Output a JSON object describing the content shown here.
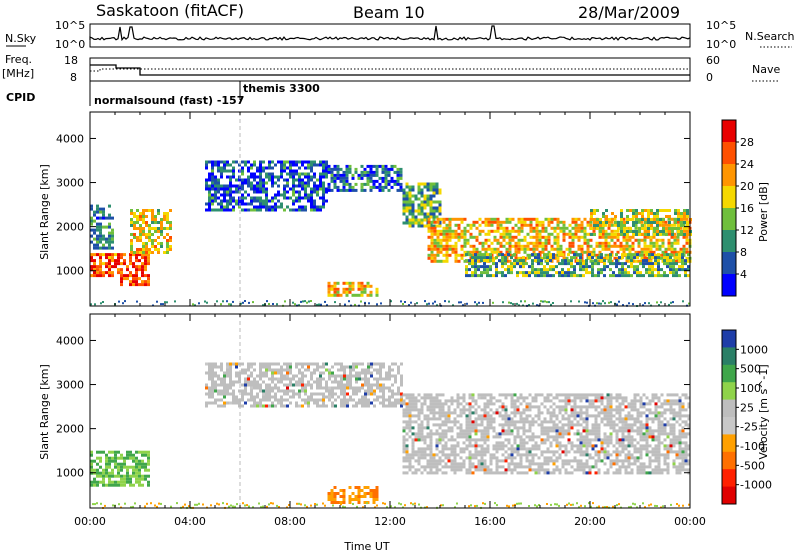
{
  "header": {
    "station": "Saskatoon (fitACF)",
    "beam": "Beam 10",
    "date": "28/Mar/2009"
  },
  "noise_panel": {
    "left_label": "N.Sky",
    "right_label": "N.Search",
    "left_ticks": [
      "10^5",
      "10^0"
    ],
    "right_ticks": [
      "10^5",
      "10^0"
    ]
  },
  "freq_panel": {
    "left_label_1": "Freq.",
    "left_label_2": "[MHz]",
    "right_label": "Nave",
    "left_ticks": [
      "18",
      "8"
    ],
    "right_ticks": [
      "60",
      "0"
    ]
  },
  "cpid": {
    "label": "CPID",
    "entries": [
      {
        "text": "normalsound (fast) -157",
        "time": 0.0
      },
      {
        "text": "themis 3300",
        "time": 6.0
      }
    ]
  },
  "colors": {
    "power_scale": [
      "#0000ff",
      "#1e50a8",
      "#2e8f6f",
      "#6fbf3c",
      "#f5d800",
      "#ff9500",
      "#ff5000",
      "#e80000"
    ],
    "velocity_scale": [
      "#1e3da8",
      "#2a7f66",
      "#3fa64a",
      "#8fd34a",
      "#bebebe",
      "#c8c8c8",
      "#ffa000",
      "#ff7000",
      "#ff2000",
      "#e00000"
    ]
  },
  "chart_data": [
    {
      "type": "heatmap",
      "panel": "power",
      "ylabel": "Slant Range [km]",
      "xlabel": "",
      "xlim": [
        0,
        24
      ],
      "ylim": [
        200,
        4600
      ],
      "yticks": [
        "1000",
        "2000",
        "3000",
        "4000"
      ],
      "colorbar": {
        "label": "Power [dB]",
        "ticks": [
          "4",
          "8",
          "12",
          "16",
          "20",
          "24",
          "28"
        ],
        "range": [
          0,
          32
        ]
      },
      "regions": [
        {
          "t0": 0.0,
          "t1": 1.1,
          "r0": 900,
          "r1": 1400,
          "value": 26
        },
        {
          "t0": 0.0,
          "t1": 0.9,
          "r0": 1500,
          "r1": 2500,
          "value": 8
        },
        {
          "t0": 1.2,
          "t1": 2.3,
          "r0": 700,
          "r1": 1400,
          "value": 28
        },
        {
          "t0": 1.6,
          "t1": 3.2,
          "r0": 1400,
          "r1": 2400,
          "value": 18
        },
        {
          "t0": 4.6,
          "t1": 9.5,
          "r0": 2400,
          "r1": 3500,
          "value": 6
        },
        {
          "t0": 9.5,
          "t1": 12.5,
          "r0": 2800,
          "r1": 3400,
          "value": 7
        },
        {
          "t0": 12.5,
          "t1": 14.0,
          "r0": 2000,
          "r1": 3000,
          "value": 12
        },
        {
          "t0": 13.5,
          "t1": 24.0,
          "r0": 1200,
          "r1": 2200,
          "value": 20
        },
        {
          "t0": 15.0,
          "t1": 24.0,
          "r0": 900,
          "r1": 1400,
          "value": 12
        },
        {
          "t0": 20.0,
          "t1": 24.0,
          "r0": 1800,
          "r1": 2400,
          "value": 16
        },
        {
          "t0": 9.5,
          "t1": 11.5,
          "r0": 450,
          "r1": 750,
          "value": 20
        }
      ]
    },
    {
      "type": "heatmap",
      "panel": "velocity",
      "ylabel": "Slant Range [km]",
      "xlabel": "Time UT",
      "xlim": [
        0,
        24
      ],
      "ylim": [
        200,
        4600
      ],
      "yticks": [
        "1000",
        "2000",
        "3000",
        "4000"
      ],
      "xticks": [
        "00:00",
        "04:00",
        "08:00",
        "12:00",
        "16:00",
        "20:00",
        "00:00"
      ],
      "colorbar": {
        "label": "Velocity [m s^-1]",
        "ticks": [
          "1000",
          "500",
          "100",
          "25",
          "-25",
          "-100",
          "-500",
          "-1000"
        ]
      },
      "regions": [
        {
          "t0": 0.0,
          "t1": 2.4,
          "r0": 700,
          "r1": 1500,
          "value": "100"
        },
        {
          "t0": 4.6,
          "t1": 12.5,
          "r0": 2500,
          "r1": 3500,
          "value": "0"
        },
        {
          "t0": 12.5,
          "t1": 24.0,
          "r0": 1000,
          "r1": 2800,
          "value": "0"
        },
        {
          "t0": 9.5,
          "t1": 11.5,
          "r0": 350,
          "r1": 700,
          "value": "-100"
        }
      ]
    }
  ]
}
